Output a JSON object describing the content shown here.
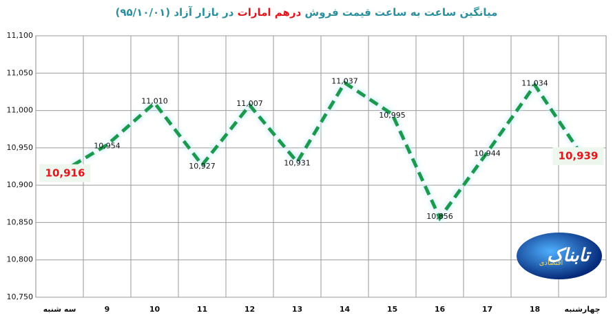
{
  "chart_data": {
    "type": "line",
    "title": [
      "میانگین ساعت به ساعت قیمت فروش",
      "درهم امارات",
      "در بازار آزاد (۹۵/۱۰/۰۱)"
    ],
    "title_color": "#2c8f9e",
    "title_highlight_color": "#e0161c",
    "categories": [
      "سه شنبه",
      "9",
      "10",
      "11",
      "12",
      "13",
      "14",
      "15",
      "16",
      "17",
      "18",
      "چهارشنبه"
    ],
    "values": [
      10916,
      10954,
      11010,
      10927,
      11007,
      10931,
      11037,
      10995,
      10856,
      10944,
      11034,
      10939
    ],
    "value_labels": [
      "10,916",
      "10,954",
      "11,010",
      "10,927",
      "11,007",
      "10,931",
      "11,037",
      "10,995",
      "10,856",
      "10,944",
      "11,034",
      "10,939"
    ],
    "color": "#1e9a4c",
    "highlight_label_color": "#e0161c",
    "ylim": [
      10750,
      11100
    ],
    "yticks": [
      {
        "value": 10750,
        "label": "10,750"
      },
      {
        "value": 10800,
        "label": "10,800"
      },
      {
        "value": 10850,
        "label": "10,850"
      },
      {
        "value": 10900,
        "label": "10,900"
      },
      {
        "value": 10950,
        "label": "10,950"
      },
      {
        "value": 11000,
        "label": "11,000"
      },
      {
        "value": 11050,
        "label": "11,050"
      },
      {
        "value": 11100,
        "label": "11,100"
      }
    ],
    "grid": true
  },
  "logo_text": [
    "تابناک",
    "اقتصادی"
  ]
}
